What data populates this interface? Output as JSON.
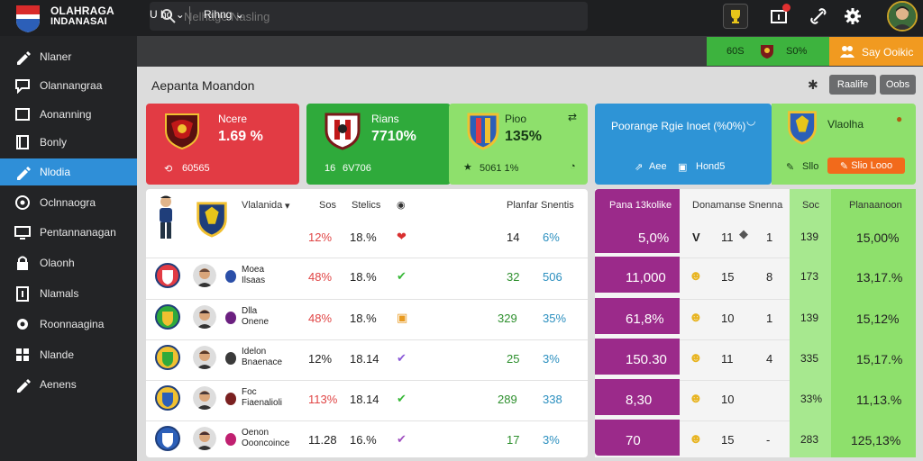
{
  "topbar": {
    "brand_line1": "OLAHRAGA",
    "brand_line2": "INDANASAI",
    "search_placeholder": "Nelhage Nasling"
  },
  "sidebar": {
    "items": [
      {
        "label": "Nlaner",
        "icon": "pen-icon"
      },
      {
        "label": "Olannangraa",
        "icon": "chat-icon"
      },
      {
        "label": "Aonanning",
        "icon": "square-icon"
      },
      {
        "label": "Bonly",
        "icon": "book-icon"
      },
      {
        "label": "Nlodia",
        "icon": "pen-icon",
        "active": true
      },
      {
        "label": "Oclnnaogra",
        "icon": "circle-icon"
      },
      {
        "label": "Pentannanagan",
        "icon": "monitor-icon"
      },
      {
        "label": "Olaonh",
        "icon": "lock-icon"
      },
      {
        "label": "Nlamals",
        "icon": "document-icon"
      },
      {
        "label": "Roonnaagina",
        "icon": "gear-icon"
      },
      {
        "label": "Nlande",
        "icon": "grid-icon"
      },
      {
        "label": "Aenens",
        "icon": "pen-icon"
      }
    ]
  },
  "subbar": {
    "dropdown1": "U ho",
    "dropdown2": "Rihng",
    "green_a": "60S",
    "green_b": "S0%",
    "orange_btn": "Say Ooikic"
  },
  "page": {
    "title": "Aepanta Moandon",
    "btn1": "Raalife",
    "btn2": "Oobs"
  },
  "cards": {
    "red": {
      "label": "Ncere",
      "value": "1.69 %",
      "foot": "60565"
    },
    "green": {
      "label": "Rians",
      "value": "7710%",
      "foot1": "16",
      "foot2": "6V706"
    },
    "lgreen": {
      "label": "Pioo",
      "value": "135%",
      "foot": "5061 1%"
    },
    "blue": {
      "label": "Poorange Rgie Inoet (%0%)",
      "foot1": "Aee",
      "foot2": "Hond5"
    },
    "lgreen2": {
      "label": "Vlaolha",
      "foot1": "Sllo",
      "foot2": "Slio Looo"
    }
  },
  "table_left": {
    "headers": {
      "player": "Vlalanida",
      "col1": "Sos",
      "col2": "Stelics",
      "col3": "Planfar",
      "col4": "Snentis"
    },
    "rows": [
      {
        "name1": "",
        "name2": "",
        "v1": "12%",
        "v2": "18.%",
        "v3": "14",
        "v4": "6%",
        "c1": "red",
        "c3": "dark"
      },
      {
        "name1": "Moea",
        "name2": "Ilsaas",
        "v1": "48%",
        "v2": "18.%",
        "v3": "32",
        "v4": "506",
        "c1": "red",
        "c3": "green"
      },
      {
        "name1": "Dlla",
        "name2": "Onene",
        "v1": "48%",
        "v2": "18.%",
        "v3": "329",
        "v4": "35%",
        "c1": "red",
        "c3": "green"
      },
      {
        "name1": "Idelon",
        "name2": "Bnaenace",
        "v1": "12%",
        "v2": "18.14",
        "v3": "25",
        "v4": "3%",
        "c1": "dark",
        "c3": "green"
      },
      {
        "name1": "Foc",
        "name2": "Fiaenalioli",
        "v1": "113%",
        "v2": "18.14",
        "v3": "289",
        "v4": "338",
        "c1": "red",
        "c3": "green"
      },
      {
        "name1": "Oenon",
        "name2": "Oooncoince",
        "v1": "11.28",
        "v2": "16.%",
        "v3": "17",
        "v4": "3%",
        "c1": "dark",
        "c3": "green"
      }
    ]
  },
  "table_right": {
    "headers": {
      "h1": "Pana 13kolike",
      "h2": "Donamanse Snenna",
      "h3": "Soc",
      "h4": "Planaanoon"
    },
    "rows": [
      {
        "p": "5,0%",
        "m1": "V",
        "m2": "11",
        "m3": "1",
        "g1": "139",
        "g2": "15,00%"
      },
      {
        "p": "11,000",
        "m1": "",
        "m2": "15",
        "m3": "8",
        "g1": "173",
        "g2": "13,17.%"
      },
      {
        "p": "61,8%",
        "m1": "",
        "m2": "10",
        "m3": "1",
        "g1": "139",
        "g2": "15,12%"
      },
      {
        "p": "150.30",
        "m1": "",
        "m2": "11",
        "m3": "4",
        "g1": "335",
        "g2": "15,17.%"
      },
      {
        "p": "8,30",
        "m1": "",
        "m2": "10",
        "m3": "",
        "g1": "33%",
        "g2": "11,13.%"
      },
      {
        "p": "70",
        "m1": "",
        "m2": "15",
        "m3": "-",
        "g1": "283",
        "g2": "125,13%"
      }
    ]
  }
}
